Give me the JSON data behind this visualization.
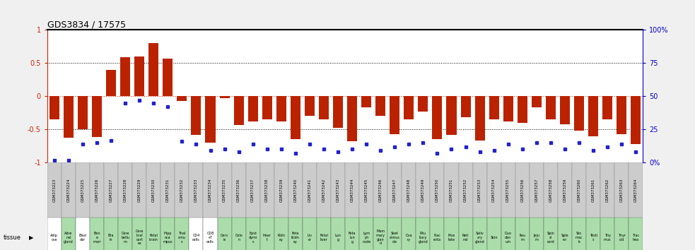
{
  "title": "GDS3834 / 17575",
  "bar_color": "#bb2200",
  "dot_color": "#2222cc",
  "gsm_labels": [
    "GSM373223",
    "GSM373224",
    "GSM373225",
    "GSM373226",
    "GSM373227",
    "GSM373228",
    "GSM373229",
    "GSM373230",
    "GSM373231",
    "GSM373232",
    "GSM373233",
    "GSM373234",
    "GSM373235",
    "GSM373236",
    "GSM373237",
    "GSM373238",
    "GSM373239",
    "GSM373240",
    "GSM373241",
    "GSM373242",
    "GSM373243",
    "GSM373244",
    "GSM373245",
    "GSM373246",
    "GSM373247",
    "GSM373248",
    "GSM373249",
    "GSM373250",
    "GSM373251",
    "GSM373252",
    "GSM373253",
    "GSM373254",
    "GSM373255",
    "GSM373256",
    "GSM373257",
    "GSM373258",
    "GSM373259",
    "GSM373260",
    "GSM373261",
    "GSM373262",
    "GSM373263",
    "GSM373264"
  ],
  "tissue_short": [
    "Adip\nose",
    "Adre\nnal\ngland",
    "Blad\nder",
    "Bon\ne\nmarr",
    "Bra\nin",
    "Cere\nbellu\nm",
    "Cere\nbral\ncort\nex",
    "Fetal\nbrain",
    "Hipp\noca\nmpus",
    "Thal\namu\ns",
    "CD4\ncells",
    "CD8\n+T\ncells",
    "Cerv\nix",
    "Colo\nn",
    "Epid\ndymi\ns",
    "Hear\nt",
    "Kidn\ney",
    "Feta\nlkidn\ney",
    "Liv\ner",
    "Fetal\nliver",
    "Lun\ng",
    "Feta\nlun\ng",
    "Lym\nph\nnode",
    "Mam\nmary\nglan\nd",
    "Sket\nalmus\ncle",
    "Ova\nry",
    "Pitu\nitary\ngland",
    "Plac\nenta",
    "Pros\ntate",
    "Reti\nnal",
    "Saliv\nary\ngland",
    "Skin",
    "Duo\nden\num",
    "Ileu\nm",
    "Jeju\nm",
    "Spin\nal\ncord",
    "Sple\nen",
    "Sto\nmac\nls",
    "Testi\ns",
    "Thy\nmus",
    "Thyr\noid",
    "Trac\nhea"
  ],
  "log10_ratio": [
    -0.35,
    -0.63,
    -0.5,
    -0.62,
    0.4,
    0.59,
    0.6,
    0.8,
    0.57,
    -0.07,
    -0.58,
    -0.7,
    -0.03,
    -0.43,
    -0.38,
    -0.35,
    -0.38,
    -0.65,
    -0.3,
    -0.35,
    -0.48,
    -0.68,
    -0.17,
    -0.3,
    -0.57,
    -0.35,
    -0.23,
    -0.65,
    -0.58,
    -0.32,
    -0.67,
    -0.35,
    -0.38,
    -0.4,
    -0.17,
    -0.35,
    -0.42,
    -0.52,
    -0.6,
    -0.35,
    -0.57,
    -0.72
  ],
  "percentile_y": [
    -0.97,
    -0.97,
    -0.72,
    -0.7,
    -0.67,
    -0.1,
    -0.06,
    -0.1,
    -0.16,
    -0.68,
    -0.72,
    -0.82,
    -0.8,
    -0.84,
    -0.72,
    -0.8,
    -0.8,
    -0.86,
    -0.72,
    -0.8,
    -0.84,
    -0.8,
    -0.72,
    -0.82,
    -0.76,
    -0.72,
    -0.7,
    -0.86,
    -0.8,
    -0.76,
    -0.84,
    -0.82,
    -0.72,
    -0.8,
    -0.7,
    -0.7,
    -0.8,
    -0.7,
    -0.82,
    -0.76,
    -0.72,
    -0.84
  ],
  "tissue_colors": [
    "#cccccc",
    "#cccccc",
    "#cccccc",
    "#cccccc",
    "#cccccc",
    "#cccccc",
    "#cccccc",
    "#cccccc",
    "#cccccc",
    "#cccccc",
    "#cccccc",
    "#cccccc",
    "#cccccc",
    "#cccccc",
    "#cccccc",
    "#cccccc",
    "#cccccc",
    "#cccccc",
    "#cccccc",
    "#cccccc",
    "#cccccc",
    "#cccccc",
    "#cccccc",
    "#cccccc",
    "#cccccc",
    "#cccccc",
    "#cccccc",
    "#cccccc",
    "#cccccc",
    "#cccccc",
    "#cccccc",
    "#cccccc",
    "#cccccc",
    "#cccccc",
    "#cccccc",
    "#cccccc",
    "#cccccc",
    "#cccccc",
    "#cccccc",
    "#cccccc",
    "#cccccc",
    "#cccccc"
  ],
  "tissue_bg_colors": [
    "#ffffff",
    "#99dd99",
    "#ffffff",
    "#99dd99",
    "#99dd99",
    "#99dd99",
    "#99dd99",
    "#99dd99",
    "#99dd99",
    "#99dd99",
    "#ffffff",
    "#ffffff",
    "#99dd99",
    "#99dd99",
    "#99dd99",
    "#99dd99",
    "#99dd99",
    "#99dd99",
    "#99dd99",
    "#99dd99",
    "#99dd99",
    "#99dd99",
    "#99dd99",
    "#99dd99",
    "#99dd99",
    "#99dd99",
    "#99dd99",
    "#99dd99",
    "#99dd99",
    "#99dd99",
    "#99dd99",
    "#99dd99",
    "#99dd99",
    "#99dd99",
    "#99dd99",
    "#99dd99",
    "#99dd99",
    "#99dd99",
    "#99dd99",
    "#99dd99",
    "#99dd99",
    "#99dd99"
  ],
  "ylim_left": [
    -1,
    1
  ],
  "ylim_right": [
    0,
    100
  ],
  "left_yticks": [
    -1,
    -0.5,
    0,
    0.5,
    1
  ],
  "right_yticks": [
    0,
    25,
    50,
    75,
    100
  ],
  "right_ytick_labels": [
    "0%",
    "25",
    "50",
    "75",
    "100%"
  ],
  "background_color": "#f0f0f0",
  "plot_bg_color": "#ffffff",
  "left_axis_color": "#cc2200",
  "right_axis_color": "#0000cc",
  "zero_line_color": "#cc2200",
  "top_border_color": "#000000"
}
